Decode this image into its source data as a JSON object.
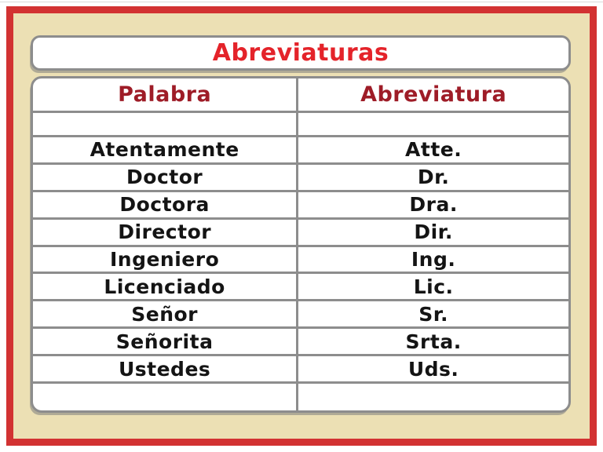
{
  "page": {
    "title": "Abreviaturas"
  },
  "table": {
    "headers": {
      "word": "Palabra",
      "abbr": "Abreviatura"
    },
    "rows": [
      {
        "word": "Atentamente",
        "abbr": "Atte."
      },
      {
        "word": "Doctor",
        "abbr": "Dr."
      },
      {
        "word": "Doctora",
        "abbr": "Dra."
      },
      {
        "word": "Director",
        "abbr": "Dir."
      },
      {
        "word": "Ingeniero",
        "abbr": "Ing."
      },
      {
        "word": "Licenciado",
        "abbr": "Lic."
      },
      {
        "word": "Señor",
        "abbr": "Sr."
      },
      {
        "word": "Señorita",
        "abbr": "Srta."
      },
      {
        "word": "Ustedes",
        "abbr": "Uds."
      }
    ]
  },
  "colors": {
    "frame_red": "#d23232",
    "background_cream": "#ece0b4",
    "title_red": "#e4232a",
    "header_maroon": "#9e1c27",
    "border_gray": "#8d8d8d",
    "body_text": "#141414"
  }
}
